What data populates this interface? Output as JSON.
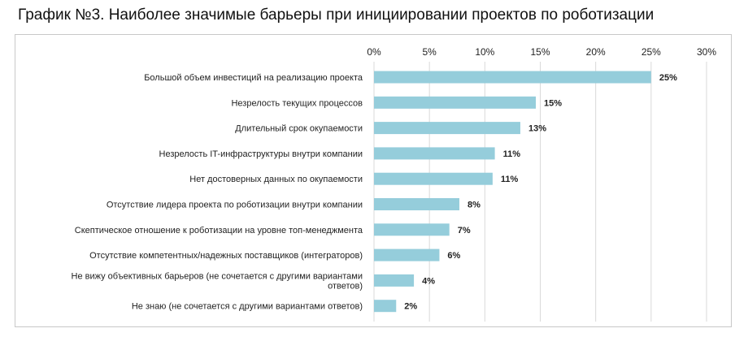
{
  "title": "График №3. Наиболее значимые барьеры при инициировании проектов по роботизации",
  "colors": {
    "bar": "#95cddb",
    "grid": "#d9d9d9"
  },
  "chart_data": {
    "type": "bar",
    "orientation": "horizontal",
    "title": "График №3. Наиболее значимые барьеры при инициировании проектов по роботизации",
    "xlim": [
      0,
      30
    ],
    "xticks": [
      0,
      5,
      10,
      15,
      20,
      25,
      30
    ],
    "xtick_labels": [
      "0%",
      "5%",
      "10%",
      "15%",
      "20%",
      "25%",
      "30%"
    ],
    "grid": true,
    "categories": [
      [
        "Большой объем инвестиций на реализацию проекта"
      ],
      [
        "Незрелость текущих процессов"
      ],
      [
        "Длительный срок окупаемости"
      ],
      [
        "Незрелость IT-инфраструктуры внутри компании"
      ],
      [
        "Нет достоверных данных по окупаемости"
      ],
      [
        "Отсутствие лидера проекта по роботизации внутри компании"
      ],
      [
        "Скептическое отношение к роботизации на уровне топ-менеджмента"
      ],
      [
        "Отсутствие компетентных/надежных поставщиков (интеграторов)"
      ],
      [
        "Не вижу объективных барьеров (не сочетается с другими вариантами",
        "ответов)"
      ],
      [
        "Не знаю (не сочетается с другими вариантами ответов)"
      ]
    ],
    "values": [
      25,
      14.6,
      13.2,
      10.9,
      10.7,
      7.7,
      6.8,
      5.9,
      3.6,
      2.0
    ],
    "data_labels": [
      "25%",
      "15%",
      "13%",
      "11%",
      "11%",
      "8%",
      "7%",
      "6%",
      "4%",
      "2%"
    ]
  }
}
